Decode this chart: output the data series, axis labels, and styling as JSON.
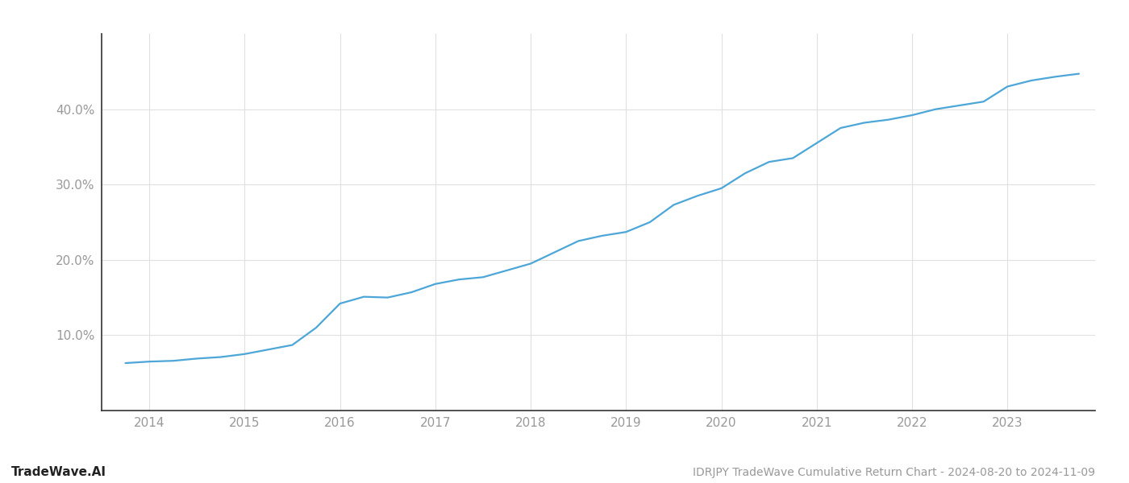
{
  "title": "IDRJPY TradeWave Cumulative Return Chart - 2024-08-20 to 2024-11-09",
  "watermark": "TradeWave.AI",
  "line_color": "#4da6d8",
  "background_color": "#ffffff",
  "grid_color": "#d0d0d0",
  "x_years": [
    2013.75,
    2014.0,
    2014.25,
    2014.5,
    2014.75,
    2015.0,
    2015.25,
    2015.5,
    2015.75,
    2016.0,
    2016.25,
    2016.5,
    2016.75,
    2017.0,
    2017.25,
    2017.5,
    2017.75,
    2018.0,
    2018.25,
    2018.5,
    2018.75,
    2019.0,
    2019.25,
    2019.5,
    2019.75,
    2020.0,
    2020.25,
    2020.5,
    2020.75,
    2021.0,
    2021.25,
    2021.5,
    2021.75,
    2022.0,
    2022.25,
    2022.5,
    2022.75,
    2023.0,
    2023.25,
    2023.5,
    2023.75
  ],
  "y_values": [
    6.3,
    6.5,
    6.6,
    6.9,
    7.1,
    7.5,
    8.1,
    8.7,
    11.0,
    14.2,
    15.1,
    15.0,
    15.7,
    16.8,
    17.4,
    17.7,
    18.6,
    19.5,
    21.0,
    22.5,
    23.2,
    23.7,
    25.0,
    27.3,
    28.5,
    29.5,
    31.5,
    33.0,
    33.5,
    35.5,
    37.5,
    38.2,
    38.6,
    39.2,
    40.0,
    40.5,
    41.0,
    43.0,
    43.8,
    44.3,
    44.7
  ],
  "xlim": [
    2013.5,
    2023.92
  ],
  "ylim": [
    0,
    50
  ],
  "yticks": [
    10.0,
    20.0,
    30.0,
    40.0
  ],
  "xticks": [
    2014,
    2015,
    2016,
    2017,
    2018,
    2019,
    2020,
    2021,
    2022,
    2023
  ],
  "tick_label_color": "#999999",
  "spine_color": "#333333",
  "grid_color_light": "#e0e0e0",
  "line_width": 1.6,
  "title_fontsize": 10,
  "watermark_fontsize": 11,
  "tick_fontsize": 11
}
